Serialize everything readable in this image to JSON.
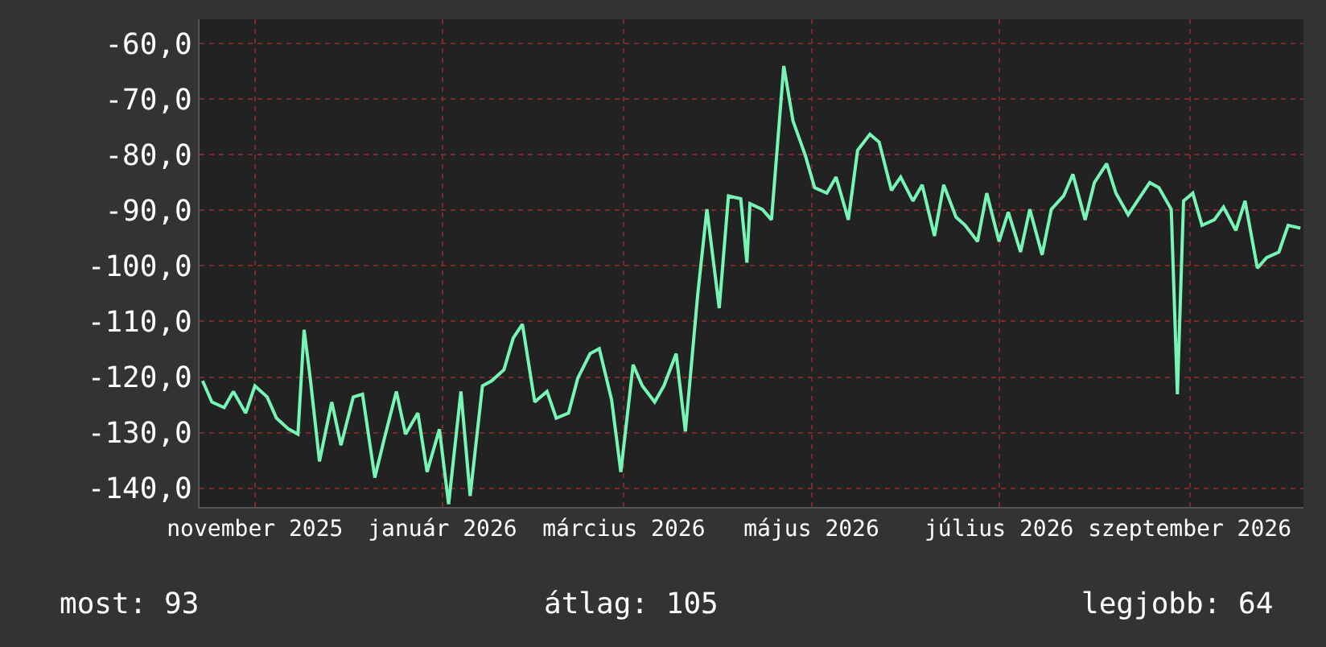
{
  "chart_data": {
    "type": "line",
    "x": [
      "2025-10-15",
      "2025-10-18",
      "2025-10-22",
      "2025-10-25",
      "2025-10-29",
      "2025-11-01",
      "2025-11-05",
      "2025-11-08",
      "2025-11-12",
      "2025-11-15",
      "2025-11-17",
      "2025-11-19",
      "2025-11-22",
      "2025-11-26",
      "2025-11-29",
      "2025-12-03",
      "2025-12-06",
      "2025-12-10",
      "2025-12-13",
      "2025-12-17",
      "2025-12-20",
      "2025-12-24",
      "2025-12-27",
      "2025-12-31",
      "2026-01-03",
      "2026-01-07",
      "2026-01-10",
      "2026-01-14",
      "2026-01-17",
      "2026-01-21",
      "2026-01-24",
      "2026-01-27",
      "2026-01-31",
      "2026-02-04",
      "2026-02-07",
      "2026-02-11",
      "2026-02-14",
      "2026-02-18",
      "2026-02-21",
      "2026-02-25",
      "2026-02-28",
      "2026-03-04",
      "2026-03-07",
      "2026-03-11",
      "2026-03-14",
      "2026-03-18",
      "2026-03-21",
      "2026-03-25",
      "2026-03-28",
      "2026-04-01",
      "2026-04-04",
      "2026-04-08",
      "2026-04-10",
      "2026-04-11",
      "2026-04-15",
      "2026-04-18",
      "2026-04-22",
      "2026-04-25",
      "2026-04-29",
      "2026-05-02",
      "2026-05-06",
      "2026-05-09",
      "2026-05-13",
      "2026-05-16",
      "2026-05-20",
      "2026-05-23",
      "2026-05-27",
      "2026-05-30",
      "2026-06-03",
      "2026-06-06",
      "2026-06-10",
      "2026-06-13",
      "2026-06-17",
      "2026-06-20",
      "2026-06-24",
      "2026-06-27",
      "2026-07-01",
      "2026-07-04",
      "2026-07-08",
      "2026-07-11",
      "2026-07-15",
      "2026-07-18",
      "2026-07-22",
      "2026-07-25",
      "2026-07-29",
      "2026-08-01",
      "2026-08-05",
      "2026-08-08",
      "2026-08-12",
      "2026-08-15",
      "2026-08-19",
      "2026-08-22",
      "2026-08-26",
      "2026-08-28",
      "2026-08-30",
      "2026-09-02",
      "2026-09-05",
      "2026-09-09",
      "2026-09-12",
      "2026-09-16",
      "2026-09-19",
      "2026-09-23",
      "2026-09-26",
      "2026-09-30",
      "2026-10-03",
      "2026-10-07"
    ],
    "series": [
      {
        "color": "#77f5b5",
        "values": [
          -120.7,
          -124.5,
          -125.5,
          -122.6,
          -126.5,
          -121.6,
          -123.6,
          -127.4,
          -129.4,
          -130.3,
          -111.5,
          -120.2,
          -135.2,
          -124.5,
          -132.3,
          -123.6,
          -123.1,
          -138.1,
          -131.3,
          -122.6,
          -130.3,
          -126.5,
          -137.1,
          -129.4,
          -142.9,
          -122.6,
          -141.4,
          -121.6,
          -120.7,
          -118.7,
          -113.0,
          -110.5,
          -124.5,
          -122.6,
          -127.4,
          -126.5,
          -120.2,
          -115.8,
          -114.9,
          -124.1,
          -137.1,
          -117.8,
          -121.6,
          -124.5,
          -121.6,
          -115.8,
          -129.8,
          -105.2,
          -89.8,
          -107.6,
          -87.4,
          -87.9,
          -99.4,
          -88.8,
          -89.8,
          -91.7,
          -64,
          -73.9,
          -80.1,
          -85.9,
          -86.9,
          -84.0,
          -91.7,
          -79.2,
          -76.3,
          -77.7,
          -86.4,
          -84.0,
          -88.3,
          -85.4,
          -94.6,
          -85.4,
          -91.2,
          -92.7,
          -95.6,
          -86.9,
          -95.6,
          -90.3,
          -97.5,
          -89.8,
          -98.0,
          -89.8,
          -87.4,
          -83.5,
          -91.7,
          -85.0,
          -81.6,
          -86.9,
          -90.8,
          -88.3,
          -85.0,
          -85.9,
          -89.8,
          -123.1,
          -88.3,
          -86.9,
          -92.7,
          -91.7,
          -89.4,
          -93.6,
          -88.3,
          -100.4,
          -98.5,
          -97.5,
          -92.7,
          -93.2
        ]
      }
    ],
    "xlim": [
      "2025-10-14",
      "2026-10-08"
    ],
    "xticks": [
      {
        "value": "2025-11-01",
        "label": "november 2025"
      },
      {
        "value": "2026-01-01",
        "label": "január 2026"
      },
      {
        "value": "2026-03-01",
        "label": "március 2026"
      },
      {
        "value": "2026-05-01",
        "label": "május 2026"
      },
      {
        "value": "2026-07-01",
        "label": "július 2026"
      },
      {
        "value": "2026-09-01",
        "label": "szeptember 2026"
      }
    ],
    "ylim": [
      -143.4,
      -55.6
    ],
    "yticks": [
      {
        "value": -60,
        "label": "-60,0"
      },
      {
        "value": -70,
        "label": "-70,0"
      },
      {
        "value": -80,
        "label": "-80,0"
      },
      {
        "value": -90,
        "label": "-90,0"
      },
      {
        "value": -100,
        "label": "-100,0"
      },
      {
        "value": -110,
        "label": "-110,0"
      },
      {
        "value": -120,
        "label": "-120,0"
      },
      {
        "value": -130,
        "label": "-130,0"
      },
      {
        "value": -140,
        "label": "-140,0"
      }
    ],
    "grid": true,
    "legend": false,
    "marker": "none",
    "line_style": "solid",
    "annotations": [
      "most: 93",
      "átlag: 105",
      "legjobb: 64"
    ]
  }
}
